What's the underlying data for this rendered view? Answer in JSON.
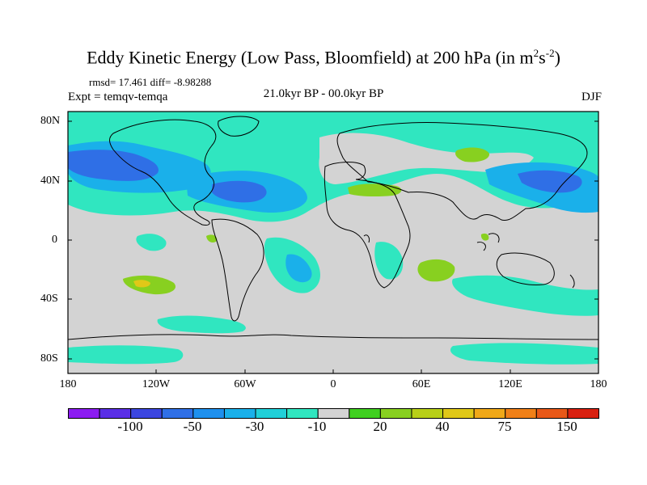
{
  "title": {
    "text": "Eddy Kinetic Energy (Low Pass, Bloomfield) at 200 hPa (in m",
    "sup1": "2",
    "mid": "s",
    "sup2": "-2",
    "close": ")"
  },
  "stats": "rmsd= 17.461 diff= -8.98288",
  "experiment": "Expt = temqv-temqa",
  "period": "21.0kyr BP - 00.0kyr BP",
  "season": "DJF",
  "lat_labels": [
    "80N",
    "40N",
    "0",
    "40S",
    "80S"
  ],
  "lon_labels": [
    "180",
    "120W",
    "60W",
    "0",
    "60E",
    "120E",
    "180"
  ],
  "colorbar": {
    "colors": [
      "#8c1cf2",
      "#5a2ee6",
      "#3c46e0",
      "#2f6fe6",
      "#1e90ee",
      "#1ab0ea",
      "#20d0d8",
      "#30e6c0",
      "#d3d3d3",
      "#40d020",
      "#88d020",
      "#b8d018",
      "#e0c818",
      "#f0a818",
      "#f08018",
      "#e85818",
      "#d82010"
    ],
    "labels": [
      "-100",
      "-50",
      "-30",
      "-10",
      "20",
      "40",
      "75",
      "150"
    ]
  },
  "map_legend_colors": {
    "land_background": "#d3d3d3",
    "cyan": "#30e6c0",
    "light_blue": "#1ab0ea",
    "blue": "#2f6fe6",
    "green": "#88d020",
    "yellow": "#e0c818"
  }
}
